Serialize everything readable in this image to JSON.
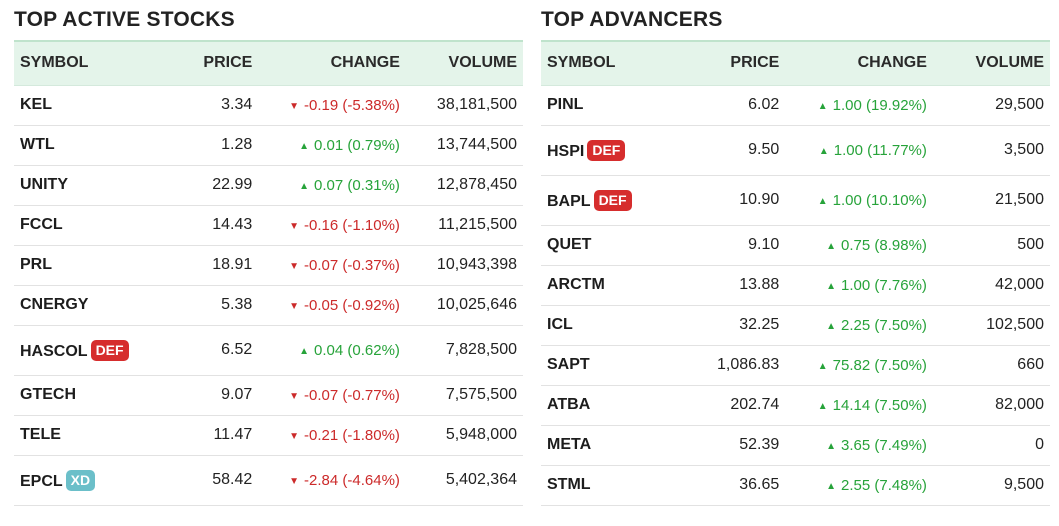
{
  "active": {
    "title": "TOP ACTIVE STOCKS",
    "headers": {
      "symbol": "SYMBOL",
      "price": "PRICE",
      "change": "CHANGE",
      "volume": "VOLUME"
    },
    "rows": [
      {
        "symbol": "KEL",
        "badge": "",
        "price": "3.34",
        "direction": "down",
        "change": "-0.19 (-5.38%)",
        "volume": "38,181,500"
      },
      {
        "symbol": "WTL",
        "badge": "",
        "price": "1.28",
        "direction": "up",
        "change": "0.01 (0.79%)",
        "volume": "13,744,500"
      },
      {
        "symbol": "UNITY",
        "badge": "",
        "price": "22.99",
        "direction": "up",
        "change": "0.07 (0.31%)",
        "volume": "12,878,450"
      },
      {
        "symbol": "FCCL",
        "badge": "",
        "price": "14.43",
        "direction": "down",
        "change": "-0.16 (-1.10%)",
        "volume": "11,215,500"
      },
      {
        "symbol": "PRL",
        "badge": "",
        "price": "18.91",
        "direction": "down",
        "change": "-0.07 (-0.37%)",
        "volume": "10,943,398"
      },
      {
        "symbol": "CNERGY",
        "badge": "",
        "price": "5.38",
        "direction": "down",
        "change": "-0.05 (-0.92%)",
        "volume": "10,025,646"
      },
      {
        "symbol": "HASCOL",
        "badge": "DEF",
        "price": "6.52",
        "direction": "up",
        "change": "0.04 (0.62%)",
        "volume": "7,828,500"
      },
      {
        "symbol": "GTECH",
        "badge": "",
        "price": "9.07",
        "direction": "down",
        "change": "-0.07 (-0.77%)",
        "volume": "7,575,500"
      },
      {
        "symbol": "TELE",
        "badge": "",
        "price": "11.47",
        "direction": "down",
        "change": "-0.21 (-1.80%)",
        "volume": "5,948,000"
      },
      {
        "symbol": "EPCL",
        "badge": "XD",
        "price": "58.42",
        "direction": "down",
        "change": "-2.84 (-4.64%)",
        "volume": "5,402,364"
      }
    ]
  },
  "advancers": {
    "title": "TOP ADVANCERS",
    "headers": {
      "symbol": "SYMBOL",
      "price": "PRICE",
      "change": "CHANGE",
      "volume": "VOLUME"
    },
    "rows": [
      {
        "symbol": "PINL",
        "badge": "",
        "price": "6.02",
        "direction": "up",
        "change": "1.00 (19.92%)",
        "volume": "29,500"
      },
      {
        "symbol": "HSPI",
        "badge": "DEF",
        "price": "9.50",
        "direction": "up",
        "change": "1.00 (11.77%)",
        "volume": "3,500"
      },
      {
        "symbol": "BAPL",
        "badge": "DEF",
        "price": "10.90",
        "direction": "up",
        "change": "1.00 (10.10%)",
        "volume": "21,500"
      },
      {
        "symbol": "QUET",
        "badge": "",
        "price": "9.10",
        "direction": "up",
        "change": "0.75 (8.98%)",
        "volume": "500"
      },
      {
        "symbol": "ARCTM",
        "badge": "",
        "price": "13.88",
        "direction": "up",
        "change": "1.00 (7.76%)",
        "volume": "42,000"
      },
      {
        "symbol": "ICL",
        "badge": "",
        "price": "32.25",
        "direction": "up",
        "change": "2.25 (7.50%)",
        "volume": "102,500"
      },
      {
        "symbol": "SAPT",
        "badge": "",
        "price": "1,086.83",
        "direction": "up",
        "change": "75.82 (7.50%)",
        "volume": "660"
      },
      {
        "symbol": "ATBA",
        "badge": "",
        "price": "202.74",
        "direction": "up",
        "change": "14.14 (7.50%)",
        "volume": "82,000"
      },
      {
        "symbol": "META",
        "badge": "",
        "price": "52.39",
        "direction": "up",
        "change": "3.65 (7.49%)",
        "volume": "0"
      },
      {
        "symbol": "STML",
        "badge": "",
        "price": "36.65",
        "direction": "up",
        "change": "2.55 (7.48%)",
        "volume": "9,500"
      }
    ]
  },
  "colors": {
    "up": "#27a33a",
    "down": "#cc2a2a",
    "header_bg": "#e4f4ea",
    "badge_def": "#d62d2d",
    "badge_xd": "#6bbfc9"
  },
  "icons": {
    "up": "triangle-up-icon",
    "down": "triangle-down-icon"
  }
}
